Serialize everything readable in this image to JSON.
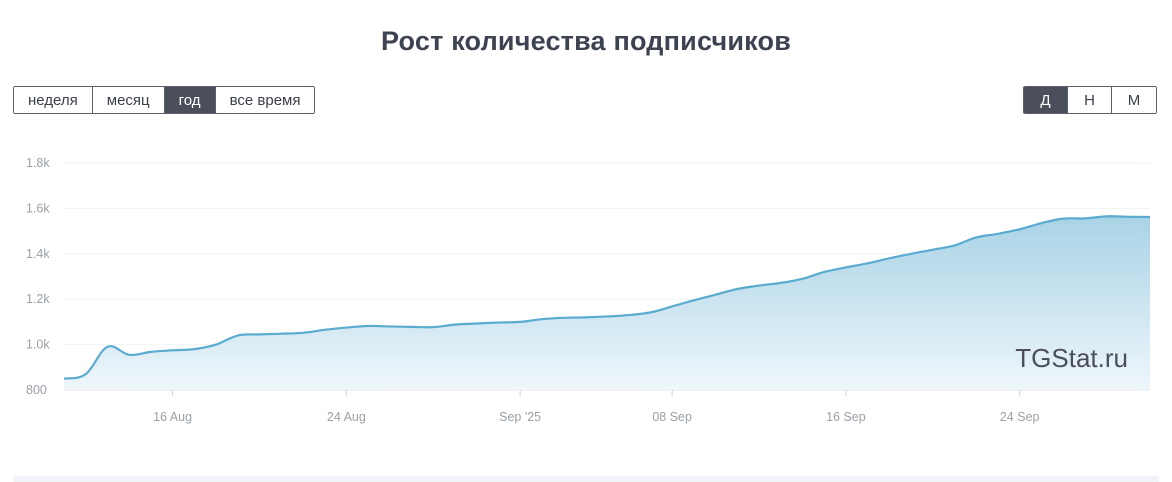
{
  "title": "Рост количества подписчиков",
  "period_buttons": [
    "неделя",
    "месяц",
    "год",
    "все время"
  ],
  "period_active": 2,
  "scale_buttons": [
    "Д",
    "Н",
    "М"
  ],
  "scale_active": 0,
  "watermark": "TGStat.ru",
  "colors": {
    "line": "#5aabcf",
    "fill_top": "#a9d3e6",
    "fill_bottom": "#eef6fb",
    "active_button": "#4a4f5b"
  },
  "chart_data": {
    "type": "area",
    "title": "Рост количества подписчиков",
    "xlabel": "",
    "ylabel": "",
    "ylim": [
      800,
      1800
    ],
    "yticks": [
      800,
      1000,
      1200,
      1400,
      1600,
      1800
    ],
    "ytick_labels": [
      "800",
      "1.0k",
      "1.2k",
      "1.4k",
      "1.6k",
      "1.8k"
    ],
    "xlim": [
      "2025-08-11",
      "2025-09-30"
    ],
    "xticks": [
      "2025-08-16",
      "2025-08-24",
      "2025-09-01",
      "2025-09-08",
      "2025-09-16",
      "2025-09-24"
    ],
    "xtick_labels": [
      "16 Aug",
      "24 Aug",
      "Sep '25",
      "08 Sep",
      "16 Sep",
      "24 Sep"
    ],
    "grid": true,
    "legend": false,
    "series": [
      {
        "x": [
          "2025-08-11",
          "2025-08-12",
          "2025-08-13",
          "2025-08-14",
          "2025-08-15",
          "2025-08-16",
          "2025-08-17",
          "2025-08-18",
          "2025-08-19",
          "2025-08-20",
          "2025-08-21",
          "2025-08-22",
          "2025-08-23",
          "2025-08-24",
          "2025-08-25",
          "2025-08-26",
          "2025-08-27",
          "2025-08-28",
          "2025-08-29",
          "2025-08-30",
          "2025-08-31",
          "2025-09-01",
          "2025-09-02",
          "2025-09-03",
          "2025-09-04",
          "2025-09-05",
          "2025-09-06",
          "2025-09-07",
          "2025-09-08",
          "2025-09-09",
          "2025-09-10",
          "2025-09-11",
          "2025-09-12",
          "2025-09-13",
          "2025-09-14",
          "2025-09-15",
          "2025-09-16",
          "2025-09-17",
          "2025-09-18",
          "2025-09-19",
          "2025-09-20",
          "2025-09-21",
          "2025-09-22",
          "2025-09-23",
          "2025-09-24",
          "2025-09-25",
          "2025-09-26",
          "2025-09-27",
          "2025-09-28",
          "2025-09-29",
          "2025-09-30"
        ],
        "values": [
          850,
          870,
          990,
          955,
          968,
          975,
          980,
          1000,
          1040,
          1045,
          1048,
          1052,
          1065,
          1075,
          1082,
          1080,
          1078,
          1077,
          1088,
          1093,
          1097,
          1100,
          1112,
          1118,
          1120,
          1124,
          1130,
          1142,
          1168,
          1195,
          1220,
          1245,
          1260,
          1272,
          1290,
          1320,
          1340,
          1358,
          1380,
          1400,
          1418,
          1437,
          1472,
          1488,
          1508,
          1535,
          1555,
          1556,
          1565,
          1563,
          1562
        ]
      }
    ]
  }
}
